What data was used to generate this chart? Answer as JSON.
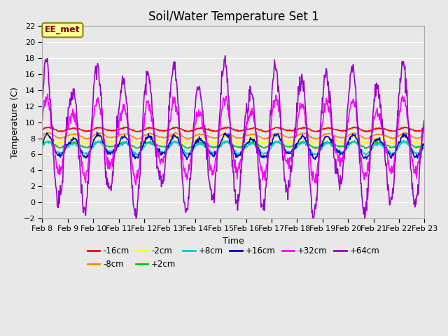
{
  "title": "Soil/Water Temperature Set 1",
  "xlabel": "Time",
  "ylabel": "Temperature (C)",
  "ylim": [
    -2,
    22
  ],
  "yticks": [
    -2,
    0,
    2,
    4,
    6,
    8,
    10,
    12,
    14,
    16,
    18,
    20,
    22
  ],
  "x_labels": [
    "Feb 8",
    "Feb 9",
    "Feb 10",
    "Feb 11",
    "Feb 12",
    "Feb 13",
    "Feb 14",
    "Feb 15",
    "Feb 16",
    "Feb 17",
    "Feb 18",
    "Feb 19",
    "Feb 20",
    "Feb 21",
    "Feb 22",
    "Feb 23"
  ],
  "background_color": "#e8e8e8",
  "plot_bg_color": "#e8e8e8",
  "annotation_text": "EE_met",
  "grid_color": "#ffffff",
  "title_fontsize": 12,
  "axis_fontsize": 9,
  "tick_fontsize": 8,
  "series": [
    {
      "label": "-16cm",
      "color": "#ff0000",
      "base": 9.1,
      "amp": 0.25,
      "noise": 0.04
    },
    {
      "label": "-8cm",
      "color": "#ff8800",
      "base": 8.3,
      "amp": 0.35,
      "noise": 0.04
    },
    {
      "label": "-2cm",
      "color": "#ffff00",
      "base": 7.8,
      "amp": 0.45,
      "noise": 0.05
    },
    {
      "+2cm": "+2cm",
      "label": "+2cm",
      "color": "#00cc00",
      "base": 7.2,
      "amp": 0.4,
      "noise": 0.05
    },
    {
      "label": "+8cm",
      "color": "#00cccc",
      "base": 6.8,
      "amp": 0.8,
      "noise": 0.08
    },
    {
      "label": "+16cm",
      "color": "#0000cc",
      "base": 7.0,
      "amp": 1.5,
      "noise": 0.15
    },
    {
      "label": "+32cm",
      "color": "#ff00ff",
      "base": 8.0,
      "amp": 5.0,
      "noise": 0.4
    },
    {
      "label": "+64cm",
      "color": "#9900cc",
      "base": 8.0,
      "amp": 9.5,
      "noise": 0.6
    }
  ],
  "legend_entries": [
    {
      "label": "-16cm",
      "color": "#ff0000"
    },
    {
      "label": "-8cm",
      "color": "#ff8800"
    },
    {
      "label": "-2cm",
      "color": "#ffff00"
    },
    {
      "label": "+2cm",
      "color": "#00cc00"
    },
    {
      "label": "+8cm",
      "color": "#00cccc"
    },
    {
      "label": "+16cm",
      "color": "#0000cc"
    },
    {
      "label": "+32cm",
      "color": "#ff00ff"
    },
    {
      "label": "+64cm",
      "color": "#9900cc"
    }
  ]
}
